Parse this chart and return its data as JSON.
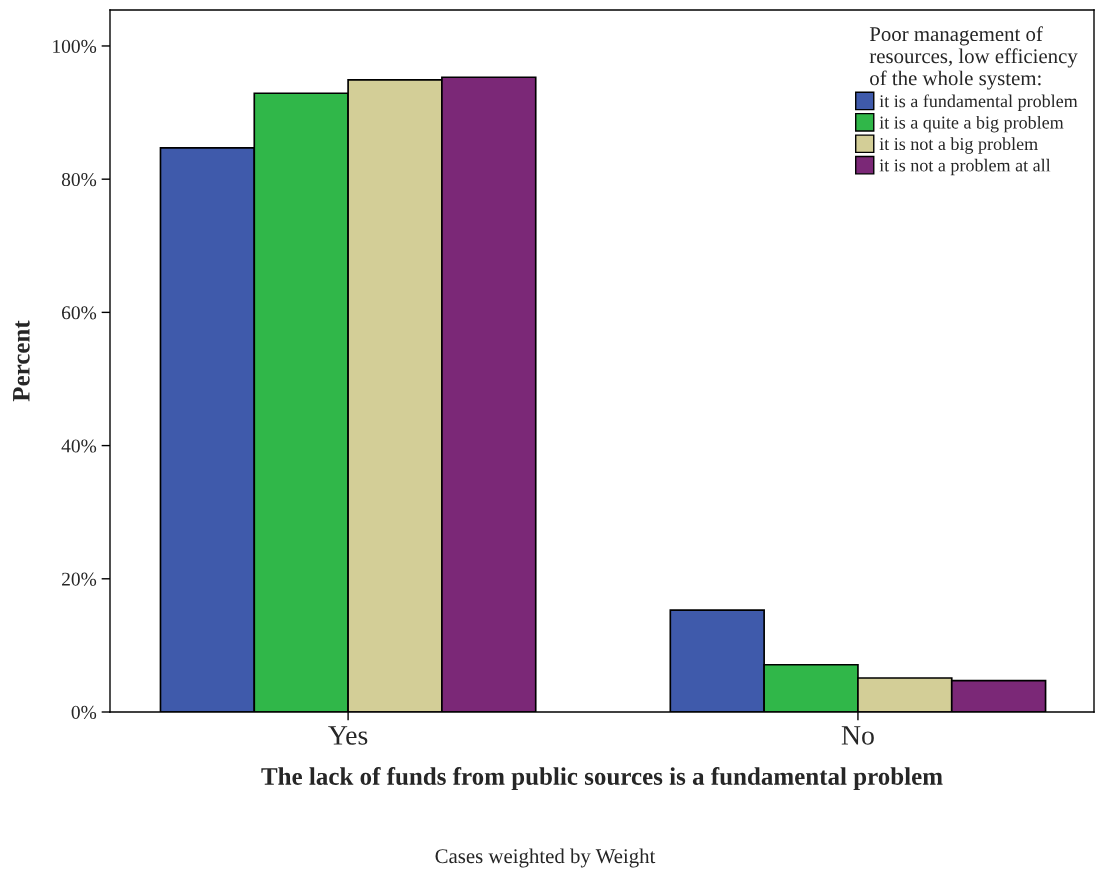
{
  "chart_data": {
    "type": "bar",
    "xlabel": "The lack of funds from public sources is a fundamental problem",
    "ylabel": "Percent",
    "categories": [
      "Yes",
      "No"
    ],
    "series": [
      {
        "name": "it is a fundamental problem",
        "color": "#3f5aab",
        "values": [
          84.7,
          15.3
        ]
      },
      {
        "name": "it is a quite a big problem",
        "color": "#30b749",
        "values": [
          92.9,
          7.1
        ]
      },
      {
        "name": "it is not a big problem",
        "color": "#d3ce97",
        "values": [
          94.9,
          5.1
        ]
      },
      {
        "name": "it is not a problem at all",
        "color": "#7b2877",
        "values": [
          95.3,
          4.7
        ]
      }
    ],
    "legend_title": "Poor management of\nresources, low efficiency\nof the whole system:",
    "legend": "top right",
    "grid": false,
    "ylim": [
      0,
      105.4
    ],
    "yticks": [
      {
        "value": 0,
        "label": "0%"
      },
      {
        "value": 20,
        "label": "20%"
      },
      {
        "value": 40,
        "label": "40%"
      },
      {
        "value": 60,
        "label": "60%"
      },
      {
        "value": 80,
        "label": "80%"
      },
      {
        "value": 100,
        "label": "100%"
      }
    ],
    "annotations": [
      "Cases weighted by Weight"
    ]
  }
}
